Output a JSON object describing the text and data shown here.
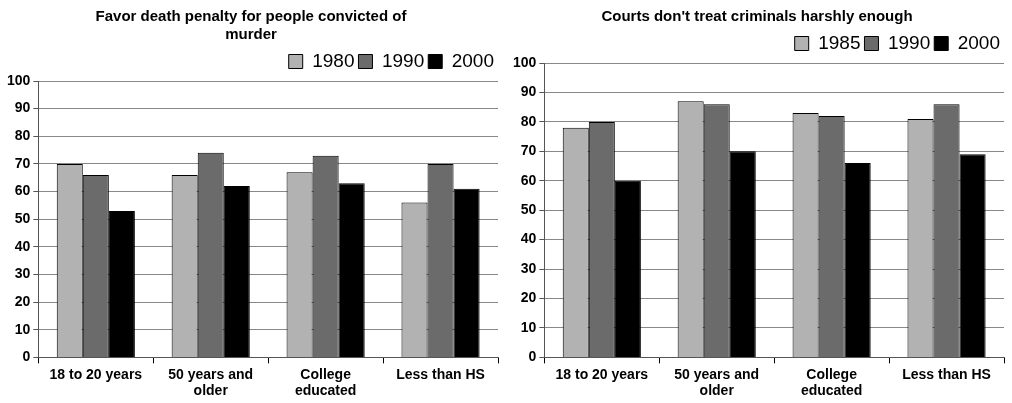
{
  "chart_data": [
    {
      "type": "bar",
      "title": "Favor death penalty for people convicted of murder",
      "categories": [
        "18 to 20 years",
        "50 years and older",
        "College educated",
        "Less than HS"
      ],
      "series": [
        {
          "name": "1980",
          "color": "#b2b2b2",
          "values": [
            70,
            66,
            67,
            56
          ]
        },
        {
          "name": "1990",
          "color": "#6b6b6b",
          "values": [
            66,
            74,
            73,
            70
          ]
        },
        {
          "name": "2000",
          "color": "#000000",
          "values": [
            53,
            62,
            63,
            61
          ]
        }
      ],
      "ylim": [
        0,
        100
      ],
      "yticks": [
        0,
        10,
        20,
        30,
        40,
        50,
        60,
        70,
        80,
        90,
        100
      ],
      "grid": "y",
      "legend": "top right"
    },
    {
      "type": "bar",
      "title": "Courts don't treat criminals harshly enough",
      "categories": [
        "18 to 20 years",
        "50 years and older",
        "College educated",
        "Less than HS"
      ],
      "series": [
        {
          "name": "1985",
          "color": "#b2b2b2",
          "values": [
            78,
            87,
            83,
            81
          ]
        },
        {
          "name": "1990",
          "color": "#6b6b6b",
          "values": [
            80,
            86,
            82,
            86
          ]
        },
        {
          "name": "2000",
          "color": "#000000",
          "values": [
            60,
            70,
            66,
            69
          ]
        }
      ],
      "ylim": [
        0,
        100
      ],
      "yticks": [
        0,
        10,
        20,
        30,
        40,
        50,
        60,
        70,
        80,
        90,
        100
      ],
      "grid": "y",
      "legend": "top right"
    }
  ]
}
